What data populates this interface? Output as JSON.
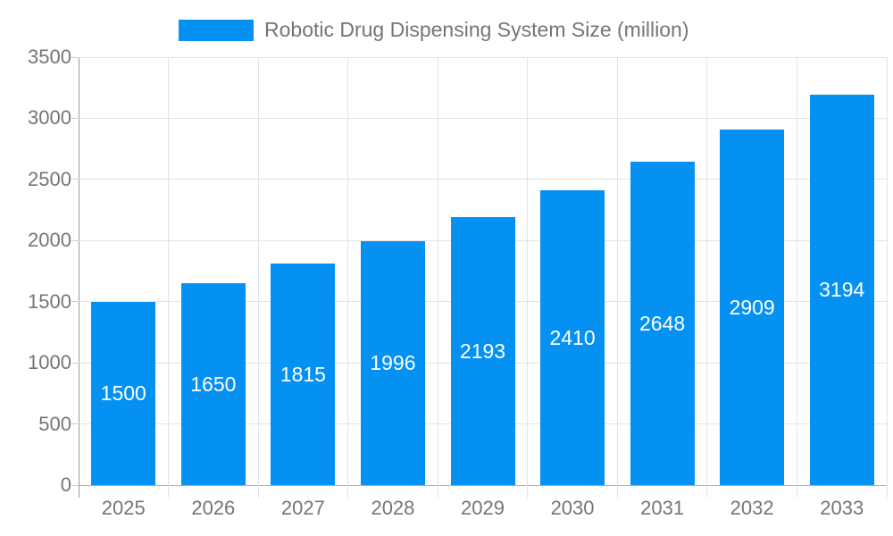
{
  "legend": {
    "label": "Robotic Drug Dispensing System Size (million)"
  },
  "chart_data": {
    "type": "bar",
    "title": "Robotic Drug Dispensing System Size (million)",
    "categories": [
      "2025",
      "2026",
      "2027",
      "2028",
      "2029",
      "2030",
      "2031",
      "2032",
      "2033"
    ],
    "values": [
      1500,
      1650,
      1815,
      1996,
      2193,
      2410,
      2648,
      2909,
      3194
    ],
    "xlabel": "",
    "ylabel": "",
    "ylim": [
      0,
      3500
    ],
    "ytick_step": 500,
    "ytick_labels": [
      "0",
      "500",
      "1000",
      "1500",
      "2000",
      "2500",
      "3000",
      "3500"
    ],
    "grid": true,
    "legend_position": "top",
    "value_labels": "inside-center-white",
    "colors": {
      "bar": "#0591F2",
      "value_text": "#FFFFFF",
      "axis_text": "#757575",
      "gridline": "#E3E3E3",
      "axis_line": "#999999",
      "background": "#FFFFFF"
    }
  }
}
